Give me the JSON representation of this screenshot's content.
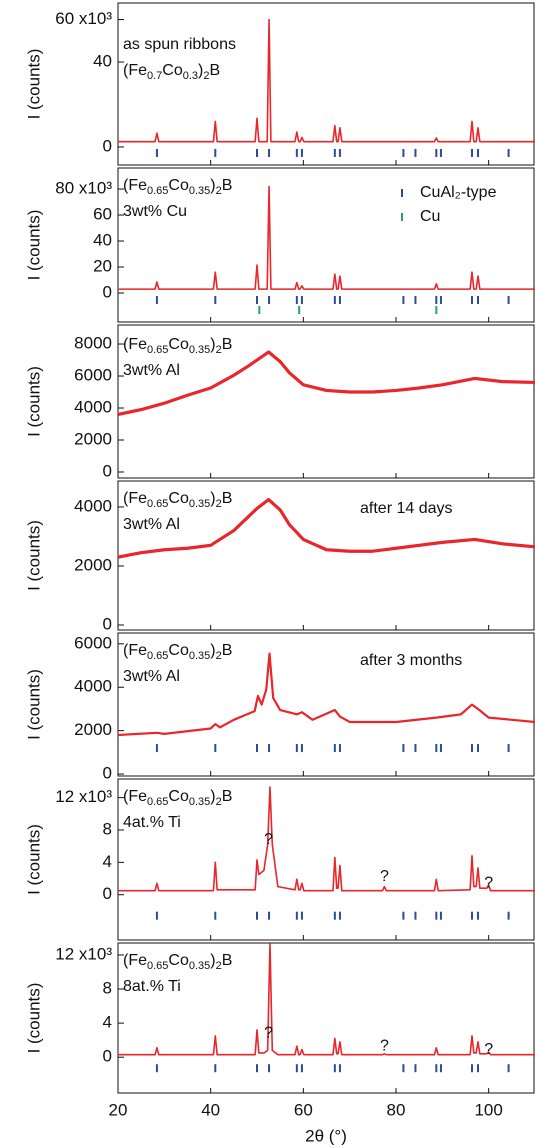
{
  "x_axis": {
    "label": "2θ (°)",
    "xlim": [
      20,
      110
    ],
    "xticks": [
      20,
      40,
      60,
      80,
      100
    ]
  },
  "reflections": [
    {
      "name": "CuAl₂-type",
      "color": "#2b4c9b",
      "x": [
        28.4,
        41.0,
        50.0,
        52.6,
        58.6,
        59.7,
        66.8,
        67.9,
        81.6,
        84.2,
        88.7,
        89.7,
        96.4,
        97.7,
        104.3
      ]
    },
    {
      "name": "Cu",
      "color": "#2fa35a",
      "x": [
        50.5,
        59.1,
        88.7
      ]
    }
  ],
  "chart_data": [
    {
      "type": "line",
      "ylabel": "I (counts)",
      "ylim": [
        -8.5,
        67.8
      ],
      "yticks": [
        0,
        40,
        {
          "value": 60,
          "label": "60 x10³"
        }
      ],
      "label_lines": [
        [
          {
            "text": "as spun ribbons"
          }
        ],
        [
          {
            "text": "(Fe"
          },
          {
            "text": "0.7",
            "sub": true
          },
          {
            "text": "Co"
          },
          {
            "text": "0.3",
            "sub": true
          },
          {
            "text": ")"
          },
          {
            "text": "2",
            "sub": true
          },
          {
            "text": "B"
          }
        ]
      ],
      "show_reflections": [
        0
      ],
      "series": [
        {
          "color": "#e8262b",
          "x": [
            20,
            28.0,
            28.4,
            28.8,
            40.6,
            41.0,
            41.4,
            49.6,
            50.0,
            50.4,
            52.2,
            52.6,
            53.0,
            58.2,
            58.6,
            59.0,
            59.3,
            59.7,
            60.1,
            66.4,
            66.8,
            67.2,
            67.5,
            67.9,
            68.3,
            88.3,
            88.7,
            89.1,
            96.0,
            96.4,
            96.8,
            97.3,
            97.7,
            98.1,
            110
          ],
          "values": [
            2.5,
            2.5,
            6.5,
            2.5,
            2.5,
            12,
            2.5,
            2.5,
            13.5,
            2.5,
            2.5,
            60,
            2.5,
            2.5,
            7,
            2.5,
            2.5,
            4.5,
            2.5,
            2.5,
            10,
            2.5,
            2.5,
            9,
            2.5,
            2.5,
            4.2,
            2.5,
            2.5,
            12,
            2.5,
            2.5,
            9,
            2.5,
            2.5
          ]
        }
      ]
    },
    {
      "type": "line",
      "ylabel": "I (counts)",
      "ylim": [
        -22.3,
        96.2
      ],
      "yticks": [
        0,
        20,
        40,
        60,
        {
          "value": 80,
          "label": "80 x10³"
        }
      ],
      "label_lines": [
        [
          {
            "text": "(Fe"
          },
          {
            "text": "0.65",
            "sub": true
          },
          {
            "text": "Co"
          },
          {
            "text": "0.35",
            "sub": true
          },
          {
            "text": ")"
          },
          {
            "text": "2",
            "sub": true
          },
          {
            "text": "B"
          }
        ],
        [
          {
            "text": "3wt% Cu"
          }
        ]
      ],
      "show_reflections": [
        0,
        1
      ],
      "legend": "upper right",
      "series": [
        {
          "color": "#e8262b",
          "x": [
            20,
            28.0,
            28.4,
            28.8,
            40.6,
            41.0,
            41.4,
            49.6,
            50.0,
            50.4,
            52.2,
            52.6,
            53.0,
            58.2,
            58.6,
            59.0,
            59.3,
            59.7,
            60.1,
            66.4,
            66.8,
            67.2,
            67.5,
            67.9,
            68.3,
            88.3,
            88.7,
            89.1,
            96.0,
            96.4,
            96.8,
            97.3,
            97.7,
            98.1,
            110
          ],
          "values": [
            3,
            3,
            8.5,
            3,
            3,
            16,
            3,
            3,
            21.5,
            3,
            3,
            82,
            3,
            3,
            8,
            3,
            3,
            5.5,
            3,
            3,
            14.5,
            3,
            3,
            13,
            3,
            3,
            7,
            3,
            3,
            16,
            3,
            3,
            13,
            3,
            3
          ]
        }
      ]
    },
    {
      "type": "line",
      "ylabel": "I (counts)",
      "ylim": [
        -375,
        9190
      ],
      "yticks": [
        0,
        2000,
        4000,
        6000,
        8000
      ],
      "label_lines": [
        [
          {
            "text": "(Fe"
          },
          {
            "text": "0.65",
            "sub": true
          },
          {
            "text": "Co"
          },
          {
            "text": "0.35",
            "sub": true
          },
          {
            "text": ")"
          },
          {
            "text": "2",
            "sub": true
          },
          {
            "text": "B"
          }
        ],
        [
          {
            "text": "3wt% Al"
          }
        ]
      ],
      "series": [
        {
          "color": "#e8262b",
          "x": [
            20,
            25,
            30,
            35,
            40,
            45,
            48,
            50,
            52.5,
            55,
            57,
            60,
            65,
            70,
            75,
            80,
            85,
            90,
            97,
            103,
            110
          ],
          "values": [
            3600,
            3900,
            4300,
            4800,
            5250,
            6050,
            6600,
            7000,
            7500,
            6900,
            6200,
            5450,
            5100,
            5000,
            5000,
            5100,
            5250,
            5450,
            5850,
            5650,
            5600
          ]
        }
      ]
    },
    {
      "type": "line",
      "ylabel": "I (counts)",
      "ylim": [
        -170,
        4880
      ],
      "yticks": [
        0,
        2000,
        4000
      ],
      "label_lines": [
        [
          {
            "text": "(Fe"
          },
          {
            "text": "0.65",
            "sub": true
          },
          {
            "text": "Co"
          },
          {
            "text": "0.35",
            "sub": true
          },
          {
            "text": ")"
          },
          {
            "text": "2",
            "sub": true
          },
          {
            "text": "B"
          }
        ],
        [
          {
            "text": "3wt% Al"
          }
        ]
      ],
      "note": "after 14 days",
      "series": [
        {
          "color": "#e8262b",
          "x": [
            20,
            25,
            30,
            35,
            40,
            45,
            48,
            50,
            52.5,
            55,
            57,
            60,
            65,
            70,
            75,
            80,
            85,
            90,
            97,
            103,
            110
          ],
          "values": [
            2300,
            2450,
            2550,
            2600,
            2700,
            3200,
            3650,
            3950,
            4250,
            3900,
            3400,
            2900,
            2550,
            2500,
            2500,
            2600,
            2700,
            2800,
            2900,
            2750,
            2650
          ]
        }
      ]
    },
    {
      "type": "line",
      "ylabel": "I (counts)",
      "ylim": [
        -90,
        6500
      ],
      "yticks": [
        0,
        2000,
        4000,
        6000
      ],
      "label_lines": [
        [
          {
            "text": "(Fe"
          },
          {
            "text": "0.65",
            "sub": true
          },
          {
            "text": "Co"
          },
          {
            "text": "0.35",
            "sub": true
          },
          {
            "text": ")"
          },
          {
            "text": "2",
            "sub": true
          },
          {
            "text": "B"
          }
        ],
        [
          {
            "text": "3wt% Al"
          }
        ]
      ],
      "note": "after 3 months",
      "show_reflections": [
        0
      ],
      "series": [
        {
          "color": "#e8262b",
          "x": [
            20,
            28.4,
            30,
            40,
            41,
            42,
            45,
            49.5,
            50.2,
            51,
            52.0,
            52.7,
            53.5,
            55,
            58.6,
            59.7,
            62,
            66.8,
            67.9,
            70,
            80,
            88.7,
            94,
            96.4,
            98,
            100,
            110
          ],
          "values": [
            1800,
            1900,
            1850,
            2100,
            2300,
            2150,
            2500,
            2900,
            3600,
            3200,
            3900,
            5550,
            3500,
            2950,
            2750,
            2850,
            2500,
            2950,
            2650,
            2400,
            2400,
            2600,
            2750,
            3200,
            2950,
            2600,
            2400
          ]
        }
      ]
    },
    {
      "type": "line",
      "ylabel": "I (counts)",
      "ylim": [
        -5.6,
        14.3
      ],
      "yticks": [
        0,
        4,
        8,
        {
          "value": 12,
          "label": "12 x10³"
        }
      ],
      "label_lines": [
        [
          {
            "text": "(Fe"
          },
          {
            "text": "0.65",
            "sub": true
          },
          {
            "text": "Co"
          },
          {
            "text": "0.35",
            "sub": true
          },
          {
            "text": ")"
          },
          {
            "text": "2",
            "sub": true
          },
          {
            "text": "B"
          }
        ],
        [
          {
            "text": "4at.% Ti"
          }
        ]
      ],
      "show_reflections": [
        0
      ],
      "annotations": [
        {
          "text": "?",
          "x": 52.5,
          "y": 6.8
        },
        {
          "text": "?",
          "x": 77.5,
          "y": 2.2
        },
        {
          "text": "?",
          "x": 100,
          "y": 1.4
        }
      ],
      "series": [
        {
          "color": "#e8262b",
          "x": [
            20,
            28.0,
            28.4,
            28.8,
            40.6,
            41.0,
            41.4,
            49.6,
            50.0,
            50.4,
            51.5,
            52.3,
            52.8,
            53.3,
            54.5,
            58.2,
            58.6,
            59.0,
            59.3,
            59.7,
            60.1,
            66.4,
            66.8,
            67.2,
            67.5,
            67.9,
            68.3,
            77.1,
            77.5,
            77.9,
            88.3,
            88.7,
            89.1,
            96.0,
            96.4,
            96.8,
            97.3,
            97.7,
            98.1,
            99.6,
            100.0,
            100.4,
            110
          ],
          "values": [
            0.5,
            0.5,
            1.4,
            0.5,
            0.5,
            4,
            0.6,
            0.6,
            4.3,
            2.5,
            3.0,
            6.2,
            13.3,
            6.2,
            1.0,
            0.6,
            1.9,
            0.6,
            0.6,
            1.4,
            0.5,
            0.5,
            4.6,
            0.8,
            0.8,
            3.6,
            0.5,
            0.5,
            1.0,
            0.5,
            0.5,
            1.9,
            0.5,
            0.6,
            4.8,
            1.0,
            1.0,
            3.3,
            0.8,
            0.8,
            1.2,
            0.5,
            0.5
          ]
        }
      ]
    },
    {
      "type": "line",
      "ylabel": "I (counts)",
      "ylim": [
        -4.2,
        13.4
      ],
      "yticks": [
        0,
        4,
        8,
        {
          "value": 12,
          "label": "12 x10³"
        }
      ],
      "label_lines": [
        [
          {
            "text": "(Fe"
          },
          {
            "text": "0.65",
            "sub": true
          },
          {
            "text": "Co"
          },
          {
            "text": "0.35",
            "sub": true
          },
          {
            "text": ")"
          },
          {
            "text": "2",
            "sub": true
          },
          {
            "text": "B"
          }
        ],
        [
          {
            "text": "8at.% Ti"
          }
        ]
      ],
      "show_reflections": [
        0
      ],
      "annotations": [
        {
          "text": "?",
          "x": 52.5,
          "y": 2.8
        },
        {
          "text": "?",
          "x": 77.5,
          "y": 1.3
        },
        {
          "text": "?",
          "x": 100,
          "y": 0.9
        }
      ],
      "series": [
        {
          "color": "#e8262b",
          "x": [
            20,
            28.0,
            28.4,
            28.8,
            40.6,
            41.0,
            41.4,
            49.6,
            50.0,
            50.4,
            51.5,
            52.3,
            52.8,
            53.3,
            54.5,
            58.2,
            58.6,
            59.0,
            59.3,
            59.7,
            60.1,
            66.4,
            66.8,
            67.2,
            67.5,
            67.9,
            68.3,
            77.1,
            77.5,
            77.9,
            88.3,
            88.7,
            89.1,
            96.0,
            96.4,
            96.8,
            97.3,
            97.7,
            98.1,
            99.6,
            100.0,
            100.4,
            110
          ],
          "values": [
            0.3,
            0.3,
            1.1,
            0.3,
            0.3,
            2.5,
            0.3,
            0.3,
            3.2,
            0.5,
            0.5,
            0.8,
            13.3,
            0.8,
            0.3,
            0.3,
            1.3,
            0.3,
            0.3,
            0.9,
            0.3,
            0.3,
            2.2,
            0.4,
            0.4,
            1.8,
            0.3,
            0.3,
            0.4,
            0.3,
            0.3,
            1.1,
            0.3,
            0.3,
            2.5,
            0.5,
            0.5,
            1.8,
            0.4,
            0.4,
            0.6,
            0.3,
            0.3
          ]
        }
      ]
    }
  ]
}
